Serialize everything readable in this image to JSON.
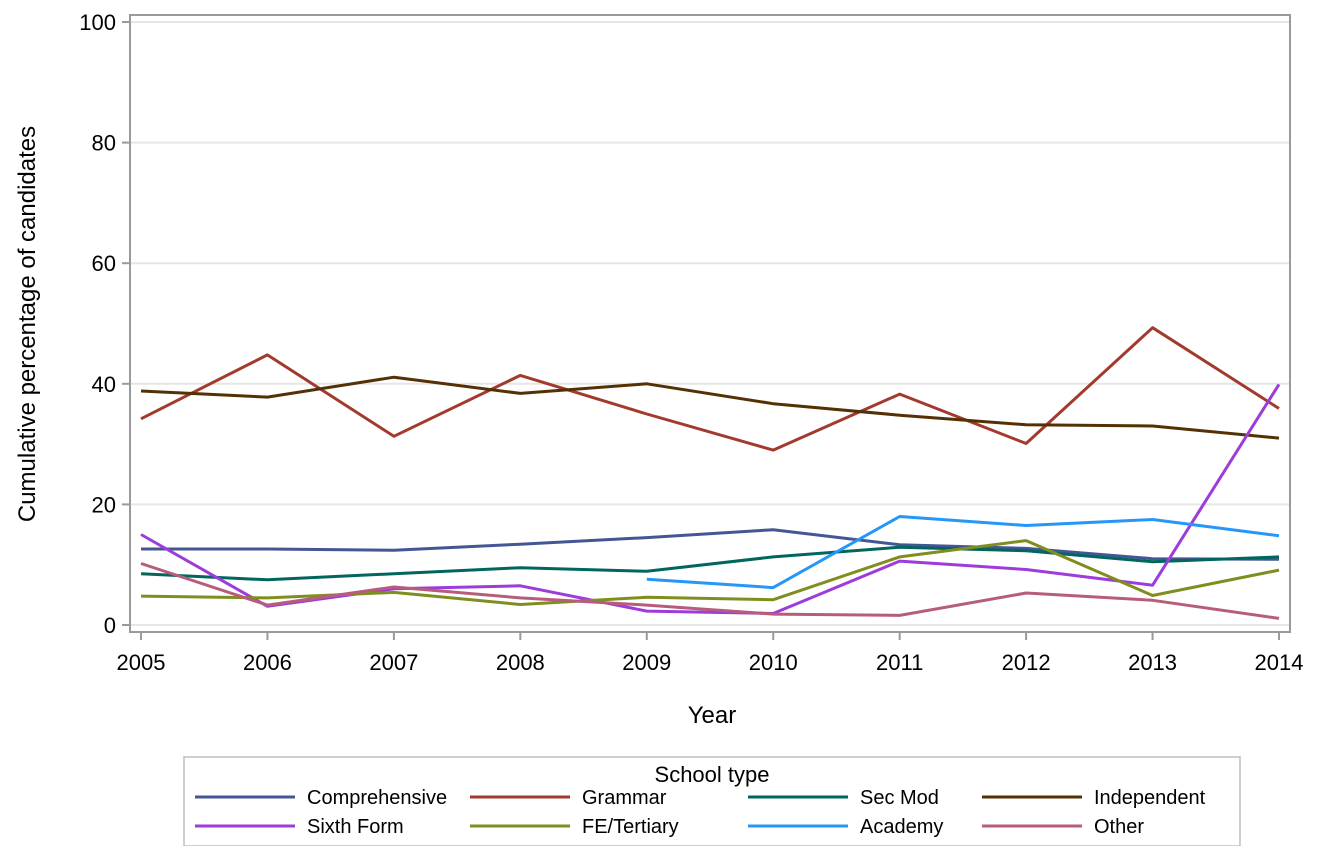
{
  "chart_data": {
    "type": "line",
    "title": "",
    "xlabel": "Year",
    "ylabel": "Cumulative percentage of candidates",
    "x": [
      2005,
      2006,
      2007,
      2008,
      2009,
      2010,
      2011,
      2012,
      2013,
      2014
    ],
    "x_ticks": [
      "2005",
      "2006",
      "2007",
      "2008",
      "2009",
      "2010",
      "2011",
      "2012",
      "2013",
      "2014"
    ],
    "xlim": [
      2005,
      2014
    ],
    "ylim": [
      0,
      100
    ],
    "y_ticks": [
      "0",
      "20",
      "40",
      "60",
      "80",
      "100"
    ],
    "grid": true,
    "legend_title": "School type",
    "legend_position": "bottom",
    "series": [
      {
        "name": "Comprehensive",
        "color": "#445694",
        "values": [
          12.6,
          12.6,
          12.4,
          13.4,
          14.5,
          15.8,
          13.3,
          12.7,
          11.0,
          10.9
        ]
      },
      {
        "name": "Grammar",
        "color": "#A23A2E",
        "values": [
          34.2,
          44.8,
          31.3,
          41.4,
          35.0,
          29.0,
          38.3,
          30.1,
          49.3,
          35.9
        ]
      },
      {
        "name": "Sec Mod",
        "color": "#01665E",
        "values": [
          8.5,
          7.5,
          8.5,
          9.5,
          8.9,
          11.3,
          12.9,
          12.3,
          10.5,
          11.3
        ]
      },
      {
        "name": "Independent",
        "color": "#543005",
        "values": [
          38.8,
          37.8,
          41.1,
          38.4,
          40.0,
          36.7,
          34.8,
          33.2,
          33.0,
          31.0
        ]
      },
      {
        "name": "Sixth Form",
        "color": "#9D3CDB",
        "values": [
          15.0,
          3.1,
          6.0,
          6.5,
          2.3,
          1.9,
          10.6,
          9.2,
          6.6,
          39.9
        ]
      },
      {
        "name": "FE/Tertiary",
        "color": "#7F8E1F",
        "values": [
          4.8,
          4.5,
          5.4,
          3.4,
          4.6,
          4.2,
          11.3,
          14.0,
          4.9,
          9.1
        ]
      },
      {
        "name": "Academy",
        "color": "#2597FA",
        "values": [
          null,
          null,
          null,
          null,
          7.6,
          6.2,
          18.0,
          16.5,
          17.5,
          14.8
        ]
      },
      {
        "name": "Other",
        "color": "#B65D7B",
        "values": [
          10.2,
          3.3,
          6.3,
          4.5,
          3.3,
          1.8,
          1.6,
          5.3,
          4.1,
          1.1
        ]
      }
    ]
  }
}
